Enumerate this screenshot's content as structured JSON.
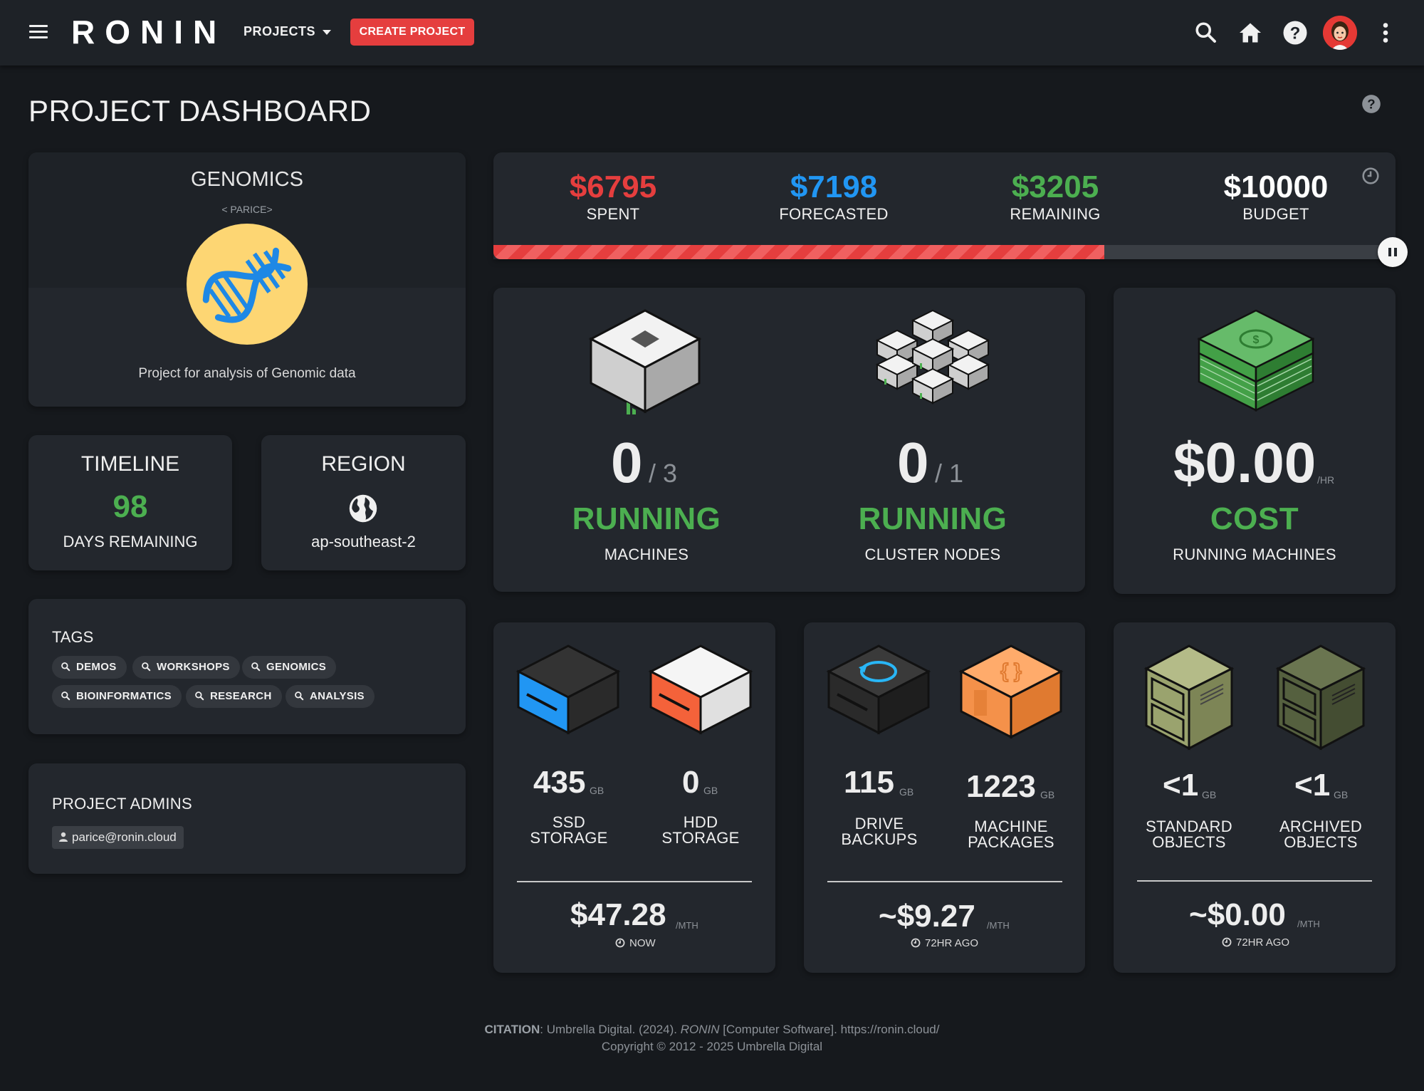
{
  "app": {
    "logo": "RONIN",
    "projects_menu": "PROJECTS",
    "create_button": "CREATE PROJECT"
  },
  "page": {
    "title": "PROJECT DASHBOARD"
  },
  "project": {
    "name": "GENOMICS",
    "owner": "< PARICE>",
    "description": "Project for analysis of Genomic data"
  },
  "timeline": {
    "title": "TIMELINE",
    "days": "98",
    "label": "DAYS REMAINING"
  },
  "region": {
    "title": "REGION",
    "value": "ap-southeast-2"
  },
  "tags": {
    "title": "TAGS",
    "items": [
      "DEMOS",
      "WORKSHOPS",
      "GENOMICS",
      "BIOINFORMATICS",
      "RESEARCH",
      "ANALYSIS"
    ]
  },
  "admins": {
    "title": "PROJECT ADMINS",
    "items": [
      "parice@ronin.cloud"
    ]
  },
  "budget": {
    "spent": "$6795",
    "spent_label": "SPENT",
    "forecasted": "$7198",
    "forecasted_label": "FORECASTED",
    "remaining": "$3205",
    "remaining_label": "REMAINING",
    "total": "$10000",
    "total_label": "BUDGET",
    "spent_fraction": 0.6795,
    "colors": {
      "spent": "#e53e3e",
      "forecasted": "#2196f3",
      "remaining": "#4caf50",
      "total": "#ffffff"
    }
  },
  "machines": {
    "running": "0",
    "total": "/ 3",
    "status": "RUNNING",
    "label": "MACHINES"
  },
  "cluster": {
    "running": "0",
    "total": "/ 1",
    "status": "RUNNING",
    "label": "CLUSTER NODES"
  },
  "cost": {
    "value": "$0.00",
    "unit": "/HR",
    "status": "COST",
    "label": "RUNNING MACHINES"
  },
  "storage": {
    "ssd": {
      "value": "435",
      "unit": "GB",
      "label1": "SSD",
      "label2": "STORAGE"
    },
    "hdd": {
      "value": "0",
      "unit": "GB",
      "label1": "HDD",
      "label2": "STORAGE"
    },
    "cost": "$47.28",
    "cost_unit": "/MTH",
    "when": "NOW"
  },
  "backups": {
    "drive": {
      "value": "115",
      "unit": "GB",
      "label1": "DRIVE",
      "label2": "BACKUPS"
    },
    "packages": {
      "value": "1223",
      "unit": "GB",
      "label1": "MACHINE",
      "label2": "PACKAGES"
    },
    "cost": "~$9.27",
    "cost_unit": "/MTH",
    "when": "72HR AGO"
  },
  "objects": {
    "standard": {
      "value": "<1",
      "unit": "GB",
      "label1": "STANDARD",
      "label2": "OBJECTS"
    },
    "archived": {
      "value": "<1",
      "unit": "GB",
      "label1": "ARCHIVED",
      "label2": "OBJECTS"
    },
    "cost": "~$0.00",
    "cost_unit": "/MTH",
    "when": "72HR AGO"
  },
  "footer": {
    "citation_label": "CITATION",
    "citation_pre": ": Umbrella Digital. (2024). ",
    "citation_italic": "RONIN",
    "citation_post": " [Computer Software]. https://ronin.cloud/",
    "copyright": "Copyright © 2012 - 2025 Umbrella Digital"
  },
  "icons": {
    "menu": "hamburger-menu-icon",
    "search": "search-icon",
    "home": "home-icon",
    "help": "help-circle-icon",
    "more": "more-vertical-icon",
    "globe": "globe-icon",
    "clock": "clock-icon",
    "user": "user-icon",
    "pause": "pause-icon",
    "tag_search": "search-icon"
  }
}
